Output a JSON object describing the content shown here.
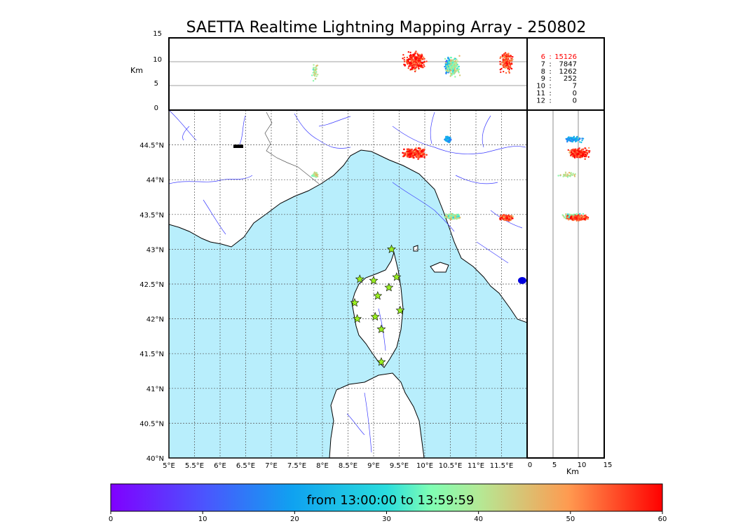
{
  "title": "SAETTA Realtime Lightning Mapping Array - 250802",
  "height_axis": {
    "label": "Km",
    "ticks": [
      "0",
      "5",
      "10",
      "15"
    ]
  },
  "lon_ticks": [
    "5°E",
    "5.5°E",
    "6°E",
    "6.5°E",
    "7°E",
    "7.5°E",
    "8°E",
    "8.5°E",
    "9°E",
    "9.5°E",
    "10°E",
    "10.5°E",
    "11°E",
    "11.5°E"
  ],
  "lat_ticks": [
    "40°N",
    "40.5°N",
    "41°N",
    "41.5°N",
    "42°N",
    "42.5°N",
    "43°N",
    "43.5°N",
    "44°N",
    "44.5°N"
  ],
  "station_counts": [
    {
      "stations": "6",
      "sep": ":",
      "count": "15126",
      "color": "#ff0000"
    },
    {
      "stations": "7",
      "sep": ":",
      "count": "7847",
      "color": "#000000"
    },
    {
      "stations": "8",
      "sep": ":",
      "count": "1262",
      "color": "#000000"
    },
    {
      "stations": "9",
      "sep": ":",
      "count": "252",
      "color": "#000000"
    },
    {
      "stations": "10",
      "sep": ":",
      "count": "7",
      "color": "#000000"
    },
    {
      "stations": "11",
      "sep": ":",
      "count": "0",
      "color": "#000000"
    },
    {
      "stations": "12",
      "sep": ":",
      "count": "0",
      "color": "#000000"
    }
  ],
  "colorbar": {
    "label": "from 13:00:00 to 13:59:59",
    "ticks": [
      "0",
      "10",
      "20",
      "30",
      "40",
      "50",
      "60"
    ],
    "min": 0,
    "max": 60
  },
  "colors": {
    "sea": "#b8eefc",
    "land": "#ffffff",
    "rivers": "#3b3bff",
    "grid": "#555555",
    "station_marker": "#99ee22"
  },
  "map_extent": {
    "lon": [
      5,
      12
    ],
    "lat": [
      40,
      45
    ]
  },
  "stations": [
    {
      "lon": 9.35,
      "lat": 43.0
    },
    {
      "lon": 8.73,
      "lat": 42.57
    },
    {
      "lon": 9.0,
      "lat": 42.55
    },
    {
      "lon": 9.45,
      "lat": 42.6
    },
    {
      "lon": 9.3,
      "lat": 42.45
    },
    {
      "lon": 9.08,
      "lat": 42.33
    },
    {
      "lon": 8.63,
      "lat": 42.23
    },
    {
      "lon": 9.52,
      "lat": 42.12
    },
    {
      "lon": 8.68,
      "lat": 42.0
    },
    {
      "lon": 9.03,
      "lat": 42.03
    },
    {
      "lon": 9.15,
      "lat": 41.85
    },
    {
      "lon": 9.15,
      "lat": 41.38
    }
  ],
  "lightning_clusters": [
    {
      "lon": 9.8,
      "lat": 44.38,
      "time_min": 58,
      "height_km": 10,
      "count": 15126
    },
    {
      "lon": 10.45,
      "lat": 44.58,
      "time_min": 20,
      "height_km": 9,
      "count": 1262
    },
    {
      "lon": 10.55,
      "lat": 43.47,
      "time_min": 38,
      "height_km": 9,
      "count": 7847
    },
    {
      "lon": 11.6,
      "lat": 43.45,
      "time_min": 55,
      "height_km": 10,
      "count": 7847
    },
    {
      "lon": 7.85,
      "lat": 44.07,
      "time_min": 40,
      "height_km": 8,
      "count": 252
    }
  ]
}
